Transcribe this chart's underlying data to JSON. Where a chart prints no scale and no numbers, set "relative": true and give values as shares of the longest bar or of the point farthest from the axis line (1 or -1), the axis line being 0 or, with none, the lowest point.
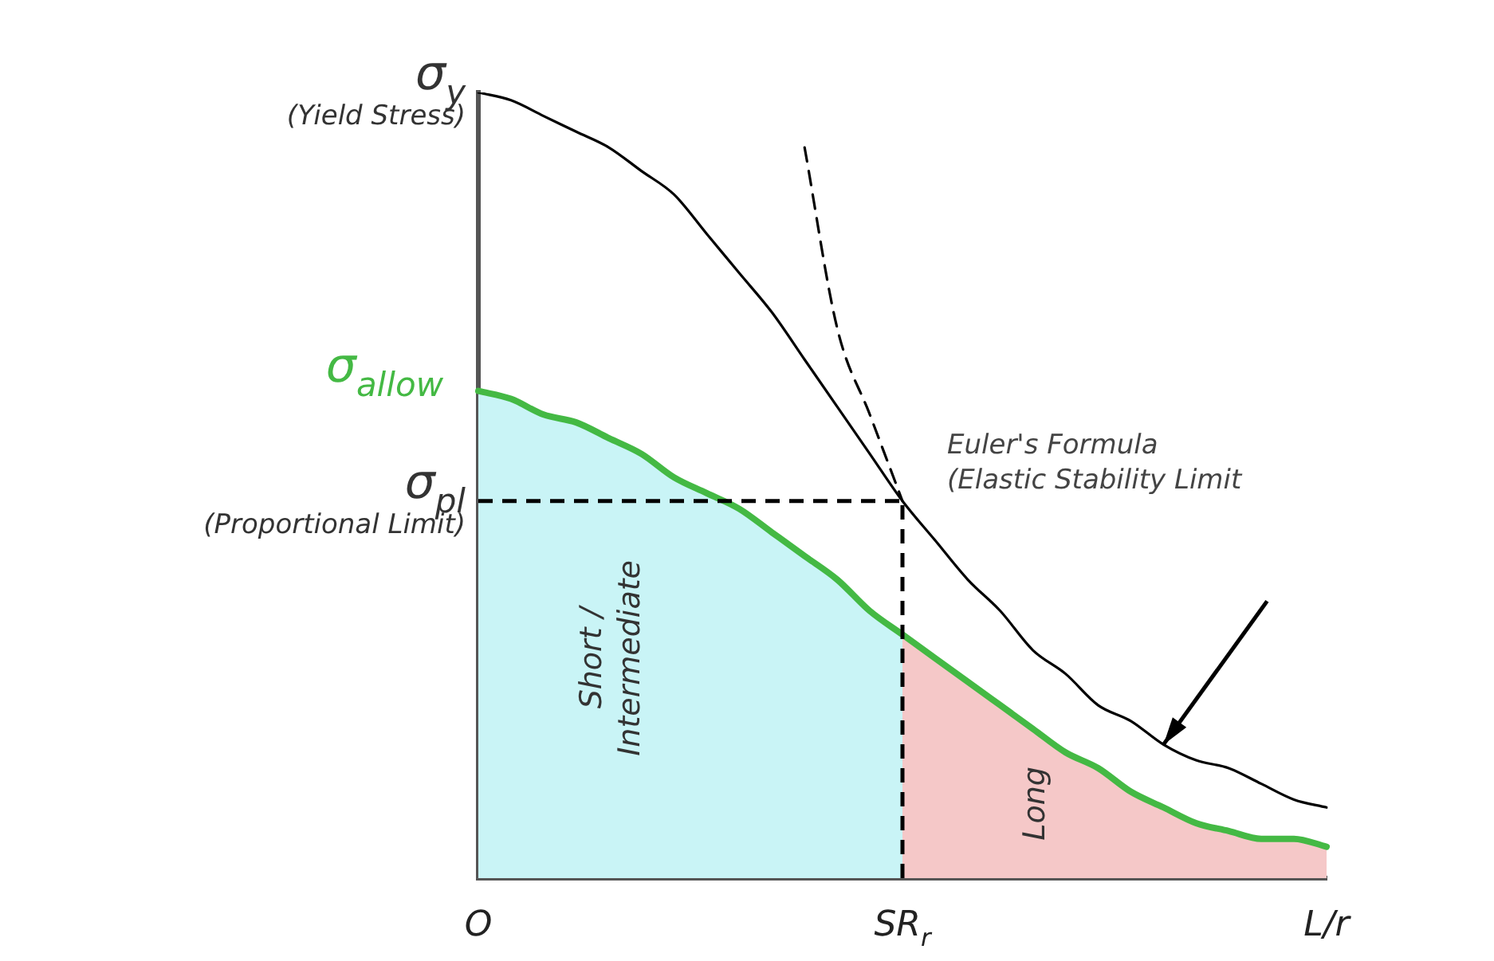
{
  "chart_data": {
    "type": "line",
    "relative": true,
    "legend": false,
    "grid": false,
    "categories": [
      "O",
      null,
      null,
      null,
      null,
      null,
      null,
      null,
      null,
      null,
      null,
      null,
      null,
      "SR$_{r}$",
      null,
      null,
      null,
      null,
      null,
      null,
      null,
      null,
      null,
      null,
      null,
      null,
      "L/r"
    ],
    "series": [
      {
        "type": "area",
        "name": "Short /\nIntermediate",
        "color": "#c9f4f6",
        "values": [
          0.62,
          0.61,
          0.59,
          0.58,
          0.56,
          0.54,
          0.51,
          0.49,
          0.47,
          0.44,
          0.41,
          0.38,
          0.34,
          0.31,
          null,
          null,
          null,
          null,
          null,
          null,
          null,
          null,
          null,
          null,
          null,
          null,
          null
        ]
      },
      {
        "type": "area",
        "name": "Long",
        "color": "#f5c8c8",
        "values": [
          null,
          null,
          null,
          null,
          null,
          null,
          null,
          null,
          null,
          null,
          null,
          null,
          null,
          0.31,
          0.28,
          0.25,
          0.22,
          0.19,
          0.16,
          0.14,
          0.11,
          0.09,
          0.07,
          0.06,
          0.05,
          0.05,
          0.04
        ]
      },
      {
        "type": "line",
        "color": "#000000",
        "line_style": "dashed",
        "values": [
          null,
          null,
          null,
          null,
          null,
          null,
          null,
          null,
          null,
          null,
          0.93,
          0.7,
          0.59,
          0.48,
          null,
          null,
          null,
          null,
          null,
          null,
          null,
          null,
          null,
          null,
          null,
          null,
          null
        ]
      },
      {
        "type": "line",
        "color": "#000000",
        "values": [
          1,
          0.99,
          0.97,
          0.95,
          0.93,
          0.9,
          0.87,
          0.82,
          0.77,
          0.72,
          0.66,
          0.6,
          0.54,
          0.48,
          0.43,
          0.38,
          0.34,
          0.29,
          0.26,
          0.22,
          0.2,
          0.17,
          0.15,
          0.14,
          0.12,
          0.1,
          0.09
        ]
      },
      {
        "type": "line",
        "name": "σ$_{allow}$",
        "color": "#44b944",
        "values": [
          0.62,
          0.61,
          0.59,
          0.58,
          0.56,
          0.54,
          0.51,
          0.49,
          0.47,
          0.44,
          0.41,
          0.38,
          0.34,
          0.31,
          0.28,
          0.25,
          0.22,
          0.19,
          0.16,
          0.14,
          0.11,
          0.09,
          0.07,
          0.06,
          0.05,
          0.05,
          0.04
        ]
      }
    ],
    "ref_lines": [
      {
        "axis": "y",
        "value": 0.48,
        "color": "#000000",
        "line_style": "dashed"
      },
      {
        "axis": "x",
        "value": "SR$_{r}$",
        "color": "#000000",
        "line_style": "dashed"
      }
    ],
    "annotations": [
      {
        "text": "σ$_{y}$\n(Yield Stress)",
        "x": "O",
        "y": 1
      },
      {
        "text": "σ$_{pl}$\n(Proportional Limit)",
        "x": "O",
        "y": 0.48
      },
      "Euler's Formula\n(Elastic Stability Limit"
    ]
  }
}
